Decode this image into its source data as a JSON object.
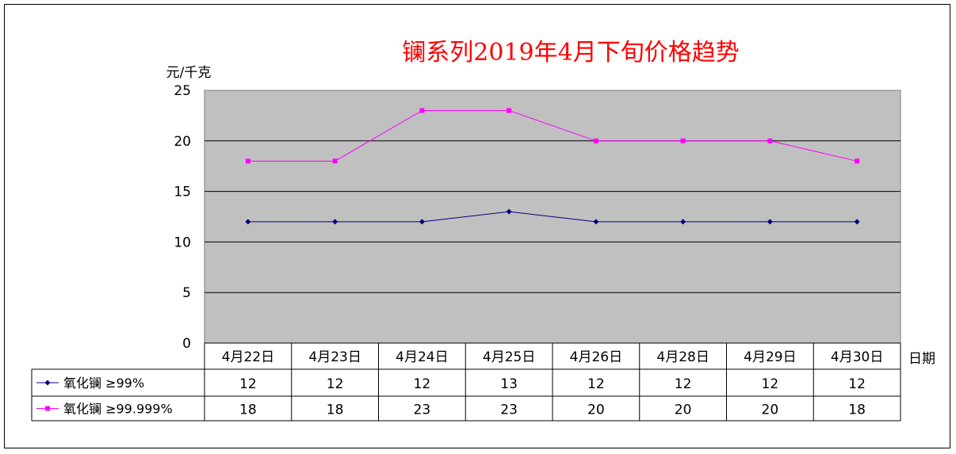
{
  "chart_data": {
    "type": "line",
    "title": "镧系列2019年4月下旬价格趋势",
    "ylabel": "元/千克",
    "xlabel": "日期",
    "ylim": [
      0,
      25
    ],
    "yticks": [
      "25",
      "20",
      "15",
      "10",
      "5",
      "0"
    ],
    "grid": true,
    "legend": "data-table-left",
    "categories": [
      "4月22日",
      "4月23日",
      "4月24日",
      "4月25日",
      "4月26日",
      "4月28日",
      "4月29日",
      "4月30日"
    ],
    "series": [
      {
        "name": "氧化镧  ≥99%",
        "values": [
          12,
          12,
          12,
          13,
          12,
          12,
          12,
          12
        ],
        "color": "#000080",
        "marker": "diamond"
      },
      {
        "name": "氧化镧  ≥99.999%",
        "values": [
          18,
          18,
          23,
          23,
          20,
          20,
          20,
          18
        ],
        "color": "#ff00ff",
        "marker": "square"
      }
    ],
    "plot_background": "#c0c0c0"
  }
}
